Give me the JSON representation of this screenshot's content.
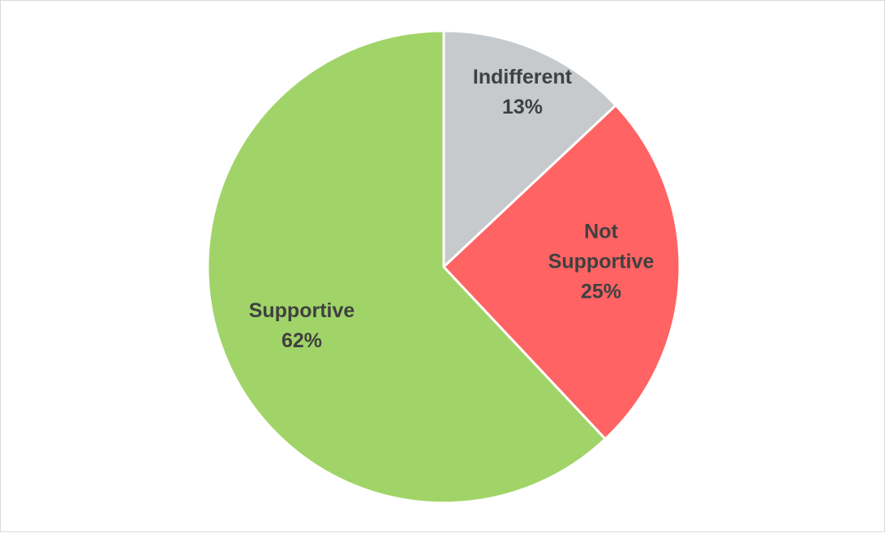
{
  "chart_data": {
    "type": "pie",
    "title": "",
    "start_angle_deg": 0,
    "direction": "clockwise",
    "slices": [
      {
        "label": "Indifferent",
        "value": 13,
        "value_label": "13%",
        "color": "#c6cacd"
      },
      {
        "label": "Not Supportive",
        "value": 25,
        "value_label": "25%",
        "color": "#ff6363"
      },
      {
        "label": "Supportive",
        "value": 62,
        "value_label": "62%",
        "color": "#a1d468"
      }
    ],
    "slice_border_color": "#ffffff",
    "label_color": "#404040"
  }
}
